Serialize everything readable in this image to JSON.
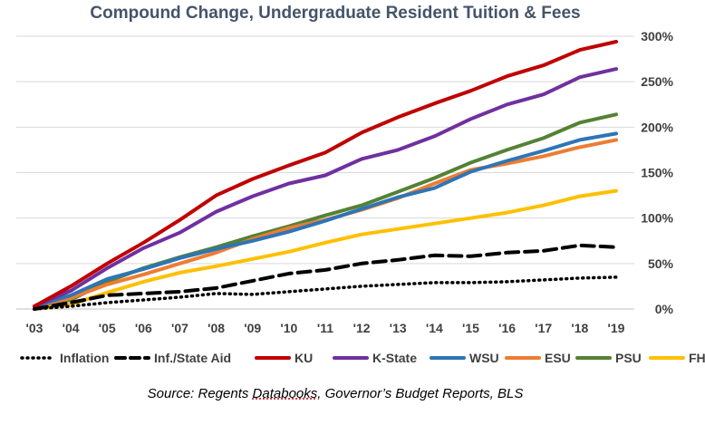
{
  "chart_data": {
    "type": "line",
    "title": "Compound Change, Undergraduate Resident Tuition & Fees",
    "xlabel": "",
    "ylabel": "",
    "x": [
      "'03",
      "'04",
      "'05",
      "'06",
      "'07",
      "'08",
      "'09",
      "'10",
      "'11",
      "'12",
      "'13",
      "'14",
      "'15",
      "'16",
      "'17",
      "'18",
      "'19"
    ],
    "yticks": [
      "0%",
      "50%",
      "100%",
      "150%",
      "200%",
      "250%",
      "300%"
    ],
    "ylim": [
      0,
      300
    ],
    "grid": true,
    "legend_position": "bottom",
    "series": [
      {
        "name": "Inflation",
        "color": "#000000",
        "style": "dotted",
        "values": [
          0,
          3,
          7,
          10,
          13,
          17,
          16,
          19,
          22,
          25,
          27,
          29,
          29,
          30,
          32,
          34,
          35
        ]
      },
      {
        "name": "Inf./State Aid",
        "color": "#000000",
        "style": "dashed",
        "values": [
          0,
          7,
          15,
          17,
          19,
          23,
          31,
          39,
          43,
          50,
          54,
          59,
          58,
          62,
          64,
          70,
          68
        ]
      },
      {
        "name": "KU",
        "color": "#c00000",
        "style": "solid",
        "values": [
          3,
          25,
          50,
          73,
          98,
          125,
          143,
          158,
          172,
          194,
          211,
          226,
          240,
          256,
          268,
          285,
          294
        ]
      },
      {
        "name": "K-State",
        "color": "#7030a0",
        "style": "solid",
        "values": [
          3,
          20,
          45,
          67,
          84,
          107,
          124,
          138,
          147,
          165,
          175,
          190,
          209,
          225,
          236,
          255,
          264
        ]
      },
      {
        "name": "WSU",
        "color": "#2e75b6",
        "style": "solid",
        "values": [
          3,
          15,
          33,
          44,
          56,
          66,
          75,
          85,
          97,
          110,
          123,
          133,
          151,
          163,
          174,
          186,
          193
        ]
      },
      {
        "name": "ESU",
        "color": "#ed7d31",
        "style": "solid",
        "values": [
          3,
          12,
          27,
          38,
          50,
          62,
          77,
          89,
          98,
          109,
          122,
          138,
          153,
          160,
          168,
          178,
          186
        ]
      },
      {
        "name": "PSU",
        "color": "#548235",
        "style": "solid",
        "values": [
          3,
          10,
          30,
          45,
          57,
          68,
          80,
          91,
          103,
          114,
          129,
          144,
          161,
          175,
          188,
          205,
          214
        ]
      },
      {
        "name": "FHSU",
        "color": "#ffc000",
        "style": "solid",
        "values": [
          0,
          5,
          18,
          30,
          40,
          47,
          55,
          63,
          73,
          82,
          88,
          94,
          100,
          106,
          114,
          124,
          130
        ]
      }
    ]
  },
  "source": {
    "prefix": "Source: Regents ",
    "underlined": "Databooks",
    "suffix": ", Governor’s Budget Reports, BLS"
  }
}
